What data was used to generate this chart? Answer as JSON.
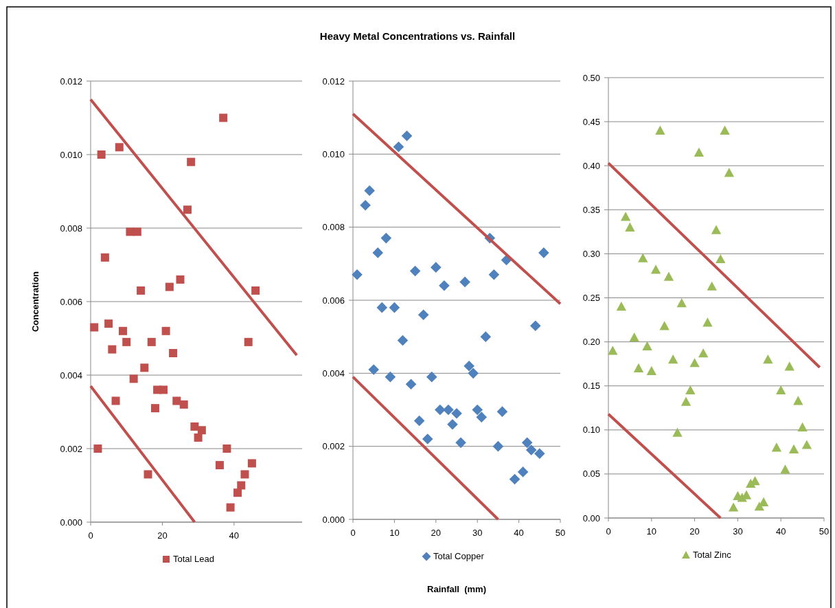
{
  "chart_data": [
    {
      "type": "scatter",
      "ylabel": "Concentration",
      "legend": "bottom",
      "grid": "y",
      "xlim": [
        0,
        59
      ],
      "xticks": [
        0,
        20,
        40
      ],
      "ylim": [
        0,
        0.012
      ],
      "yticks": [
        {
          "value": 0,
          "label": "0.000"
        },
        {
          "value": 0.002,
          "label": "0.002"
        },
        {
          "value": 0.004,
          "label": "0.004"
        },
        {
          "value": 0.006,
          "label": "0.006"
        },
        {
          "value": 0.008,
          "label": "0.008"
        },
        {
          "value": 0.01,
          "label": "0.010"
        },
        {
          "value": 0.012,
          "label": "0.012"
        }
      ],
      "series": [
        {
          "name": "Total Lead",
          "color": "#c0504d",
          "marker": "square",
          "x": [
            1,
            2,
            3,
            4,
            5,
            6,
            7,
            8,
            9,
            10,
            11,
            13,
            12,
            14,
            15,
            16,
            17,
            18,
            18.6,
            20.3,
            21,
            22,
            23,
            24,
            25,
            26,
            27,
            28,
            29,
            30,
            31,
            36,
            37,
            38,
            39,
            41,
            42,
            43,
            44,
            45,
            46
          ],
          "values": [
            0.0053,
            0.002,
            0.01,
            0.0072,
            0.0054,
            0.0047,
            0.0033,
            0.0102,
            0.0052,
            0.0049,
            0.0079,
            0.0079,
            0.0039,
            0.0063,
            0.0042,
            0.0013,
            0.0049,
            0.0031,
            0.0036,
            0.0036,
            0.0052,
            0.0064,
            0.0046,
            0.0033,
            0.0066,
            0.0032,
            0.0085,
            0.0098,
            0.0026,
            0.0023,
            0.0025,
            0.00155,
            0.011,
            0.002,
            0.0004,
            0.0008,
            0.001,
            0.0013,
            0.0049,
            0.0016,
            0.0063
          ]
        },
        {
          "type": "line",
          "color": "#c0504d",
          "marker": "none",
          "x": [
            0,
            57.5
          ],
          "values": [
            0.0115,
            0.00454
          ]
        },
        {
          "type": "line",
          "color": "#c0504d",
          "marker": "none",
          "x": [
            0,
            29
          ],
          "values": [
            0.0037,
            0
          ]
        }
      ]
    },
    {
      "type": "scatter",
      "title": "Heavy Metal Concentrations vs. Rainfall",
      "xlabel": "Rainfall  (mm)",
      "legend": "bottom",
      "grid": "y",
      "xlim": [
        0,
        50
      ],
      "xticks": [
        0,
        10,
        20,
        30,
        40,
        50
      ],
      "ylim": [
        0,
        0.012
      ],
      "yticks": [
        {
          "value": 0,
          "label": "0.000"
        },
        {
          "value": 0.002,
          "label": "0.002"
        },
        {
          "value": 0.004,
          "label": "0.004"
        },
        {
          "value": 0.006,
          "label": "0.006"
        },
        {
          "value": 0.008,
          "label": "0.008"
        },
        {
          "value": 0.01,
          "label": "0.010"
        },
        {
          "value": 0.012,
          "label": "0.012"
        }
      ],
      "series": [
        {
          "name": "Total Copper",
          "color": "#4f81bd",
          "marker": "diamond",
          "x": [
            1,
            3,
            4,
            5,
            6,
            7,
            8,
            9,
            10,
            11,
            12,
            13,
            14,
            15,
            16,
            17,
            18,
            19,
            20,
            21,
            22,
            23,
            24,
            25,
            26,
            27,
            28,
            29,
            30,
            31,
            32,
            33,
            34,
            35,
            36,
            37,
            39,
            41,
            42,
            43,
            44,
            45,
            46
          ],
          "values": [
            0.0067,
            0.0086,
            0.009,
            0.0041,
            0.0073,
            0.0058,
            0.0077,
            0.0039,
            0.0058,
            0.0102,
            0.0049,
            0.0105,
            0.0037,
            0.0068,
            0.0027,
            0.0056,
            0.0022,
            0.0039,
            0.0069,
            0.003,
            0.0064,
            0.003,
            0.0026,
            0.0029,
            0.0021,
            0.0065,
            0.0042,
            0.004,
            0.003,
            0.0028,
            0.005,
            0.0077,
            0.0067,
            0.002,
            0.00295,
            0.0071,
            0.0011,
            0.0013,
            0.0021,
            0.0019,
            0.0053,
            0.0018,
            0.0073
          ]
        },
        {
          "type": "line",
          "color": "#c0504d",
          "marker": "none",
          "x": [
            0,
            50
          ],
          "values": [
            0.0111,
            0.0059
          ]
        },
        {
          "type": "line",
          "color": "#c0504d",
          "marker": "none",
          "x": [
            0,
            35
          ],
          "values": [
            0.0039,
            0
          ]
        }
      ]
    },
    {
      "type": "scatter",
      "legend": "bottom",
      "grid": "y",
      "xlim": [
        0,
        50
      ],
      "xticks": [
        0,
        10,
        20,
        30,
        40,
        50
      ],
      "ylim": [
        0,
        0.5
      ],
      "yticks": [
        {
          "value": 0,
          "label": "0.00"
        },
        {
          "value": 0.05,
          "label": "0.05"
        },
        {
          "value": 0.1,
          "label": "0.10"
        },
        {
          "value": 0.15,
          "label": "0.15"
        },
        {
          "value": 0.2,
          "label": "0.20"
        },
        {
          "value": 0.25,
          "label": "0.25"
        },
        {
          "value": 0.3,
          "label": "0.30"
        },
        {
          "value": 0.35,
          "label": "0.35"
        },
        {
          "value": 0.4,
          "label": "0.40"
        },
        {
          "value": 0.45,
          "label": "0.45"
        },
        {
          "value": 0.5,
          "label": "0.50"
        }
      ],
      "series": [
        {
          "name": "Total Zinc",
          "color": "#9bbb59",
          "marker": "triangle",
          "x": [
            1,
            3,
            4,
            5,
            6,
            7,
            8,
            9,
            10,
            11,
            12,
            13,
            14,
            15,
            16,
            17,
            18,
            19,
            20,
            21,
            22,
            23,
            24,
            25,
            26,
            27,
            28,
            29,
            30,
            31,
            32,
            33,
            34,
            35,
            36,
            37,
            39,
            40,
            41,
            42,
            43,
            44,
            45,
            46
          ],
          "values": [
            0.19,
            0.24,
            0.342,
            0.33,
            0.205,
            0.17,
            0.295,
            0.195,
            0.167,
            0.282,
            0.44,
            0.218,
            0.274,
            0.18,
            0.097,
            0.244,
            0.132,
            0.145,
            0.176,
            0.415,
            0.187,
            0.222,
            0.263,
            0.327,
            0.294,
            0.44,
            0.392,
            0.012,
            0.025,
            0.023,
            0.026,
            0.039,
            0.042,
            0.013,
            0.018,
            0.18,
            0.08,
            0.145,
            0.055,
            0.172,
            0.078,
            0.133,
            0.103,
            0.083
          ]
        },
        {
          "type": "line",
          "color": "#c0504d",
          "marker": "none",
          "x": [
            0,
            49
          ],
          "values": [
            0.403,
            0.171
          ]
        },
        {
          "type": "line",
          "color": "#c0504d",
          "marker": "none",
          "x": [
            0,
            26
          ],
          "values": [
            0.118,
            0
          ]
        }
      ]
    }
  ]
}
